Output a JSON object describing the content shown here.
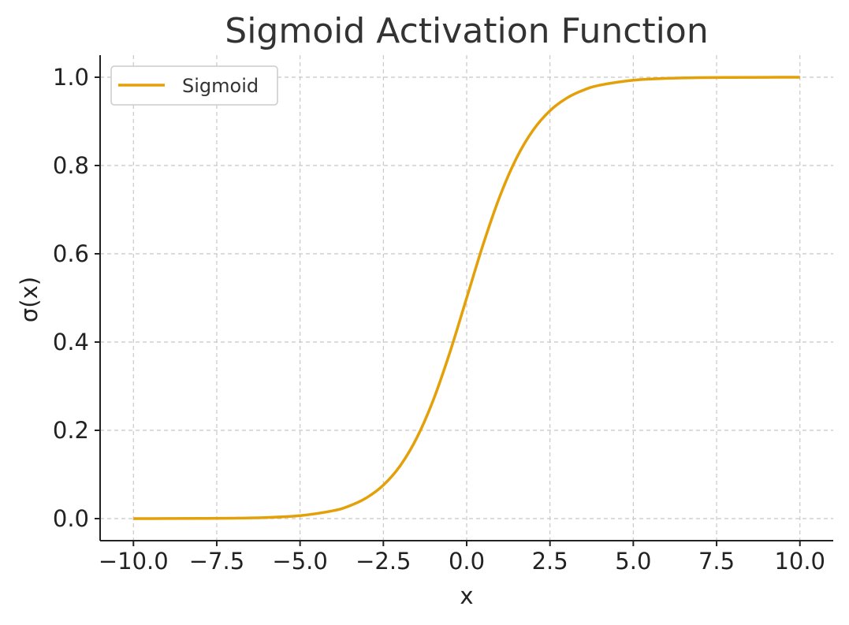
{
  "chart_data": {
    "type": "line",
    "title": "Sigmoid Activation Function",
    "xlabel": "x",
    "ylabel": "σ(x)",
    "xlim": [
      -11,
      11
    ],
    "ylim": [
      -0.05,
      1.05
    ],
    "x_ticks": [
      -10.0,
      -7.5,
      -5.0,
      -2.5,
      0.0,
      2.5,
      5.0,
      7.5,
      10.0
    ],
    "x_tick_labels": [
      "−10.0",
      "−7.5",
      "−5.0",
      "−2.5",
      "0.0",
      "2.5",
      "5.0",
      "7.5",
      "10.0"
    ],
    "y_ticks": [
      0.0,
      0.2,
      0.4,
      0.6,
      0.8,
      1.0
    ],
    "y_tick_labels": [
      "0.0",
      "0.2",
      "0.4",
      "0.6",
      "0.8",
      "1.0"
    ],
    "grid": true,
    "legend_position": "top-left",
    "series": [
      {
        "name": "Sigmoid",
        "color": "#E3A008",
        "x": [
          -10,
          -9,
          -8,
          -7,
          -6,
          -5,
          -4,
          -3.5,
          -3,
          -2.5,
          -2,
          -1.5,
          -1,
          -0.5,
          0,
          0.5,
          1,
          1.5,
          2,
          2.5,
          3,
          3.5,
          4,
          5,
          6,
          7,
          8,
          9,
          10
        ],
        "y": [
          4.54e-05,
          0.0001234,
          0.0003354,
          0.000911,
          0.002473,
          0.006693,
          0.017986,
          0.029312,
          0.047426,
          0.075858,
          0.119203,
          0.182426,
          0.268941,
          0.377541,
          0.5,
          0.622459,
          0.731059,
          0.817574,
          0.880797,
          0.924142,
          0.952574,
          0.970688,
          0.982014,
          0.993307,
          0.997527,
          0.999089,
          0.999665,
          0.999877,
          0.999955
        ]
      }
    ]
  }
}
